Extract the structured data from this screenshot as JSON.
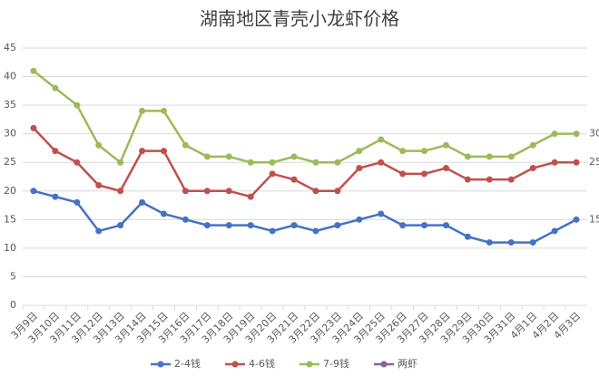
{
  "chart_data": {
    "type": "line",
    "title": "湖南地区青壳小龙虾价格",
    "categories": [
      "3月9日",
      "3月10日",
      "3月11日",
      "3月12日",
      "3月13日",
      "3月14日",
      "3月15日",
      "3月16日",
      "3月17日",
      "3月18日",
      "3月19日",
      "3月20日",
      "3月21日",
      "3月22日",
      "3月23日",
      "3月24日",
      "3月25日",
      "3月26日",
      "3月27日",
      "3月28日",
      "3月29日",
      "3月30日",
      "3月31日",
      "4月1日",
      "4月2日",
      "4月3日"
    ],
    "series": [
      {
        "name": "2-4钱",
        "color": "#4472c4",
        "values": [
          20,
          19,
          18,
          13,
          14,
          18,
          16,
          15,
          14,
          14,
          14,
          13,
          14,
          13,
          14,
          15,
          16,
          14,
          14,
          14,
          12,
          11,
          11,
          11,
          13,
          15
        ]
      },
      {
        "name": "4-6钱",
        "color": "#c0504d",
        "values": [
          31,
          27,
          25,
          21,
          20,
          27,
          27,
          20,
          20,
          20,
          19,
          23,
          22,
          20,
          20,
          24,
          25,
          23,
          23,
          24,
          22,
          22,
          22,
          24,
          25,
          25
        ]
      },
      {
        "name": "7-9钱",
        "color": "#9bbb59",
        "values": [
          41,
          38,
          35,
          28,
          25,
          34,
          34,
          28,
          26,
          26,
          25,
          25,
          26,
          25,
          25,
          27,
          29,
          27,
          27,
          28,
          26,
          26,
          26,
          28,
          30,
          30
        ]
      },
      {
        "name": "两虾",
        "color": "#8064a2",
        "values": [
          null,
          null,
          null,
          null,
          null,
          null,
          null,
          null,
          null,
          null,
          null,
          null,
          null,
          null,
          null,
          null,
          null,
          null,
          null,
          null,
          null,
          null,
          null,
          null,
          null,
          null
        ]
      }
    ],
    "ylim": [
      0,
      45
    ],
    "yticks": [
      0,
      5,
      10,
      15,
      20,
      25,
      30,
      35,
      40,
      45
    ],
    "grid": true,
    "legend": "bottom"
  }
}
